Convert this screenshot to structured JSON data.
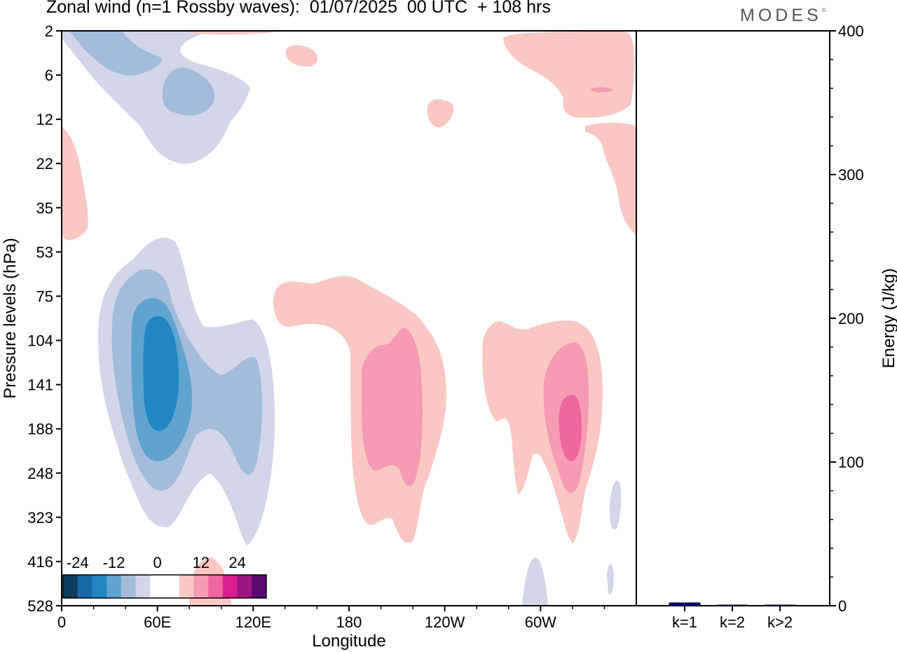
{
  "header": {
    "title": "Zonal wind (n=1 Rossby waves):  01/07/2025  00 UTC  + 108 hrs",
    "brand": "MODES"
  },
  "chart_data": [
    {
      "type": "heatmap",
      "title": "Zonal wind (n=1 Rossby waves):  01/07/2025  00 UTC  + 108 hrs",
      "xlabel": "Longitude",
      "ylabel": "Pressure levels (hPa)",
      "x_ticks": [
        "0",
        "60E",
        "120E",
        "180",
        "120W",
        "60W"
      ],
      "x_tick_values_deg_east": [
        0,
        60,
        120,
        180,
        240,
        300
      ],
      "xlim_deg_east": [
        0,
        360
      ],
      "y_ticks": [
        "2",
        "6",
        "12",
        "22",
        "35",
        "53",
        "75",
        "104",
        "141",
        "188",
        "248",
        "323",
        "416",
        "528"
      ],
      "colorbar": {
        "tick_labels": [
          "-24",
          "-12",
          "0",
          "12",
          "24"
        ],
        "levels": [
          -30,
          -25,
          -20,
          -15,
          -10,
          -5,
          0,
          5,
          10,
          15,
          20,
          25,
          30
        ],
        "colors": [
          "#0d3b5c",
          "#1769a6",
          "#2186c4",
          "#5fa3cf",
          "#a3bcdb",
          "#d3d6e8",
          "#ffffff",
          "#ffffff",
          "#f9c8c4",
          "#f79ab4",
          "#f066a0",
          "#d81f8d",
          "#9b1683",
          "#5a0a6e"
        ]
      },
      "regions": [
        {
          "sign": "negative",
          "peak": "-20",
          "center_lon": 60,
          "center_hPa": 141
        },
        {
          "sign": "negative",
          "peak": "-10",
          "center_lon": 115,
          "center_hPa": 188
        },
        {
          "sign": "negative",
          "peak": "-10",
          "center_lon": 50,
          "center_hPa": 9
        },
        {
          "sign": "positive",
          "peak": "10",
          "center_lon": 210,
          "center_hPa": 160
        },
        {
          "sign": "positive",
          "peak": "15",
          "center_lon": 320,
          "center_hPa": 160
        },
        {
          "sign": "positive",
          "peak": "5",
          "center_lon": 355,
          "center_hPa": 8
        },
        {
          "sign": "positive",
          "peak": "5",
          "center_lon": 5,
          "center_hPa": 25
        }
      ]
    },
    {
      "type": "bar",
      "categories": [
        "k=1",
        "k=2",
        "k>2"
      ],
      "values": [
        2,
        0.5,
        0.5
      ],
      "ylabel": "Energy (J/kg)",
      "y_ticks": [
        "0",
        "100",
        "200",
        "300",
        "400"
      ],
      "ylim": [
        0,
        400
      ],
      "bar_color": "#00008b"
    }
  ]
}
